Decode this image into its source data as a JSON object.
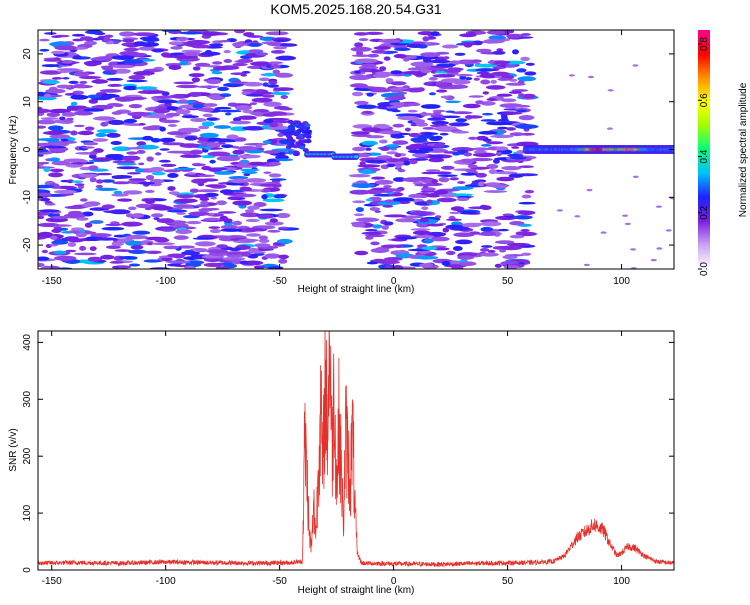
{
  "title": "KOM5.2025.168.20.54.G31",
  "chart_data": [
    {
      "type": "heatmap",
      "xlabel": "Height of straight line (km)",
      "ylabel": "Frequency (Hz)",
      "xlim": [
        -156,
        123
      ],
      "ylim": [
        -25,
        25
      ],
      "xticks": [
        -150,
        -100,
        -50,
        0,
        50,
        100
      ],
      "yticks": [
        -20,
        -10,
        0,
        10,
        20
      ],
      "colorbar": {
        "label": "Normalized spectral amplitude",
        "range": [
          0.0,
          0.85
        ],
        "ticks": [
          0.0,
          0.2,
          0.4,
          0.6,
          0.8
        ],
        "tick_labels": [
          "0.0",
          "0.2",
          "0.4",
          "0.6",
          "0.8"
        ],
        "colors": [
          "#ffffff",
          "#c9a6f2",
          "#7a20e0",
          "#2020ff",
          "#00c0ff",
          "#00ff80",
          "#a0ff00",
          "#ffff00",
          "#ff9000",
          "#ff0000",
          "#ff0090"
        ]
      },
      "features": [
        {
          "x_range": [
            -156,
            -46
          ],
          "f_range": [
            -25,
            25
          ],
          "level": "low scattered noise (0.05–0.2)"
        },
        {
          "x_range": [
            -46,
            -38
          ],
          "f_range": [
            0,
            6
          ],
          "level": 0.2
        },
        {
          "x_range": [
            -38,
            -26
          ],
          "f_range": [
            -2,
            0
          ],
          "level": 0.3
        },
        {
          "x_range": [
            -26,
            -16
          ],
          "f_range": [
            -2,
            -1
          ],
          "level": 0.35
        },
        {
          "x_range": [
            -16,
            60
          ],
          "f_range": [
            -25,
            25
          ],
          "level": "low scattered noise (0.05–0.2)"
        },
        {
          "x_range": [
            58,
            123
          ],
          "f_range": [
            -1,
            1.5
          ],
          "level": "0.3–0.85, peaks near x≈90 and x≈105"
        }
      ]
    },
    {
      "type": "line",
      "xlabel": "Height of straight line (km)",
      "ylabel": "SNR (v/v)",
      "xlim": [
        -156,
        123
      ],
      "ylim": [
        0,
        420
      ],
      "xticks": [
        -150,
        -100,
        -50,
        0,
        50,
        100
      ],
      "yticks": [
        0,
        100,
        200,
        300,
        400
      ],
      "color": "#e8302a",
      "series": [
        {
          "name": "",
          "x": [
            -156,
            -140,
            -120,
            -100,
            -80,
            -60,
            -45,
            -40,
            -39,
            -38,
            -37,
            -36,
            -35,
            -34,
            -33,
            -32,
            -31,
            -30,
            -29,
            -28,
            -27,
            -26,
            -25,
            -24,
            -23,
            -22,
            -21,
            -20,
            -19,
            -18,
            -17,
            -16,
            -14,
            0,
            20,
            40,
            60,
            70,
            75,
            80,
            85,
            88,
            90,
            92,
            95,
            98,
            100,
            103,
            106,
            110,
            115,
            123
          ],
          "y": [
            12,
            13,
            12,
            14,
            13,
            12,
            13,
            15,
            230,
            170,
            60,
            40,
            110,
            60,
            190,
            280,
            170,
            340,
            250,
            410,
            200,
            330,
            140,
            260,
            180,
            80,
            240,
            200,
            150,
            250,
            110,
            30,
            12,
            11,
            10,
            12,
            13,
            15,
            25,
            55,
            70,
            80,
            75,
            70,
            45,
            25,
            30,
            42,
            38,
            25,
            15,
            12
          ]
        }
      ]
    }
  ]
}
